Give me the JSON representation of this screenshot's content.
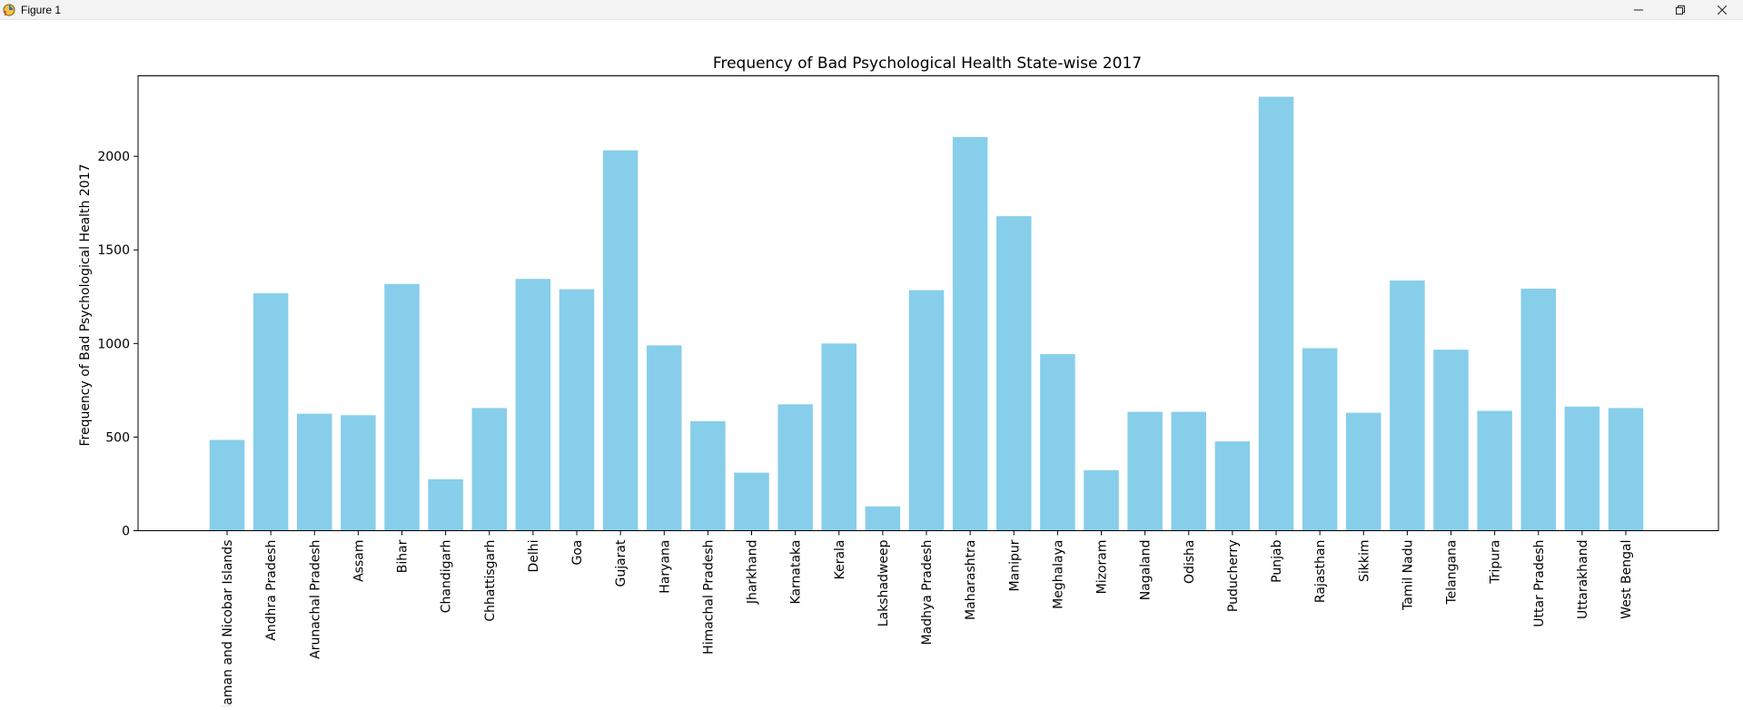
{
  "window": {
    "title": "Figure 1",
    "icons": [
      "figure-app-icon",
      "minimize-icon",
      "maximize-icon",
      "close-icon"
    ]
  },
  "chart_data": {
    "type": "bar",
    "title": "Frequency of Bad Psychological Health State-wise 2017",
    "xlabel": "",
    "ylabel": "Frequency of Bad Psychological Health 2017",
    "bar_color": "#87ceeb",
    "ylim": [
      0,
      2430
    ],
    "yticks": [
      0,
      500,
      1000,
      1500,
      2000
    ],
    "grid": false,
    "categories": [
      "Andaman and Nicobar Islands",
      "Andhra Pradesh",
      "Arunachal Pradesh",
      "Assam",
      "Bihar",
      "Chandigarh",
      "Chhattisgarh",
      "Delhi",
      "Goa",
      "Gujarat",
      "Haryana",
      "Himachal Pradesh",
      "Jharkhand",
      "Karnataka",
      "Kerala",
      "Lakshadweep",
      "Madhya Pradesh",
      "Maharashtra",
      "Manipur",
      "Meghalaya",
      "Mizoram",
      "Nagaland",
      "Odisha",
      "Puducherry",
      "Punjab",
      "Rajasthan",
      "Sikkim",
      "Tamil Nadu",
      "Telangana",
      "Tripura",
      "Uttar Pradesh",
      "Uttarakhand",
      "West Bengal"
    ],
    "values": [
      485,
      1268,
      625,
      617,
      1318,
      275,
      655,
      1345,
      1290,
      2032,
      990,
      585,
      310,
      675,
      1000,
      130,
      1285,
      2103,
      1680,
      943,
      323,
      635,
      635,
      477,
      2318,
      975,
      630,
      1337,
      967,
      640,
      1293,
      663,
      655
    ]
  }
}
